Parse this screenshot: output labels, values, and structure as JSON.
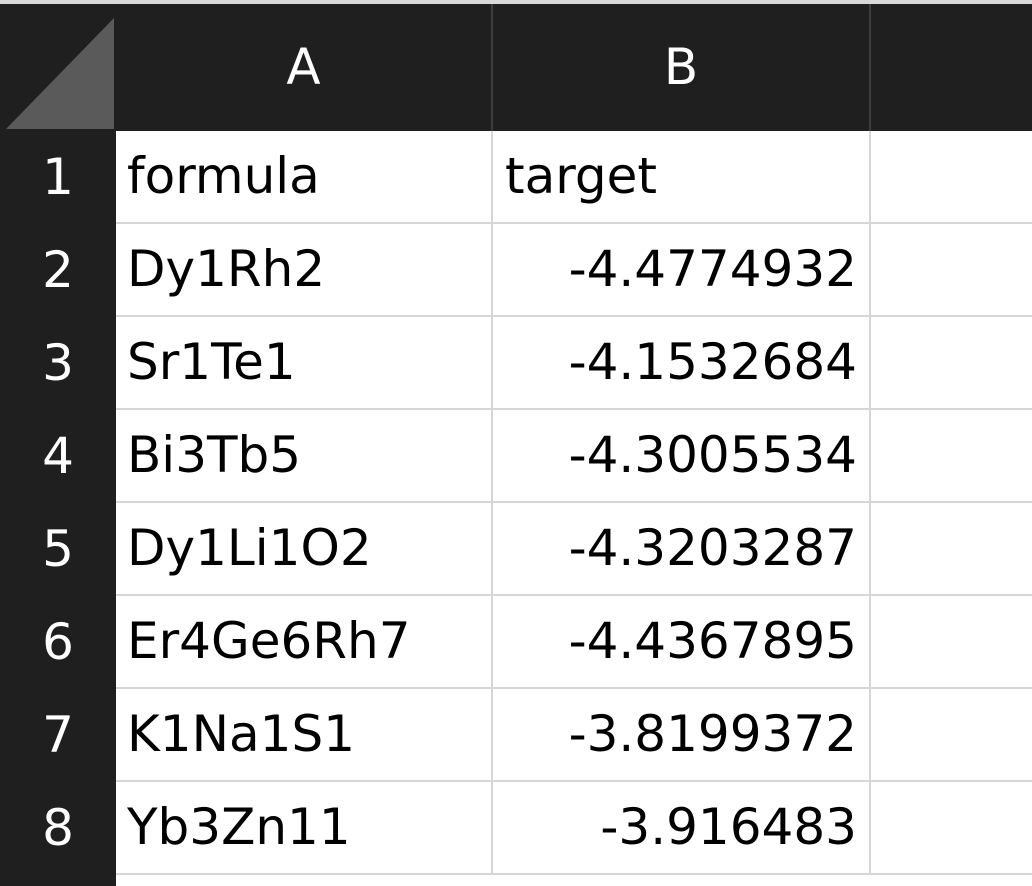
{
  "columns": [
    "A",
    "B",
    ""
  ],
  "rows": [
    {
      "num": "1",
      "a": "formula",
      "b": "target"
    },
    {
      "num": "2",
      "a": "Dy1Rh2",
      "b": "-4.4774932"
    },
    {
      "num": "3",
      "a": "Sr1Te1",
      "b": "-4.1532684"
    },
    {
      "num": "4",
      "a": "Bi3Tb5",
      "b": "-4.3005534"
    },
    {
      "num": "5",
      "a": "Dy1Li1O2",
      "b": "-4.3203287"
    },
    {
      "num": "6",
      "a": "Er4Ge6Rh7",
      "b": "-4.4367895"
    },
    {
      "num": "7",
      "a": "K1Na1S1",
      "b": "-3.8199372"
    },
    {
      "num": "8",
      "a": "Yb3Zn11",
      "b": "-3.916483"
    }
  ],
  "colors": {
    "header_bg": "#1f1f1f",
    "header_text": "#ffffff",
    "gridline": "#d6d6d6",
    "corner_triangle": "#5a5a5a"
  }
}
